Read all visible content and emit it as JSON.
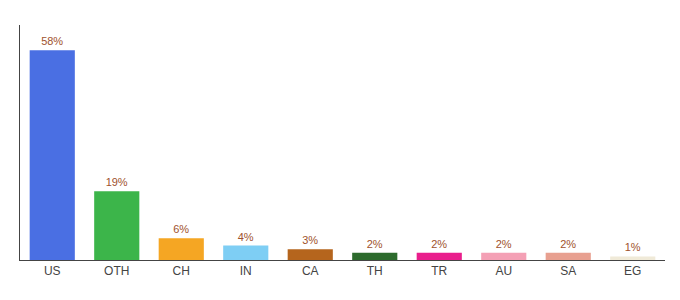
{
  "chart_data": {
    "type": "bar",
    "categories": [
      "US",
      "OTH",
      "CH",
      "IN",
      "CA",
      "TH",
      "TR",
      "AU",
      "SA",
      "EG"
    ],
    "values": [
      58,
      19,
      6,
      4,
      3,
      2,
      2,
      2,
      2,
      1
    ],
    "value_labels": [
      "58%",
      "19%",
      "6%",
      "4%",
      "3%",
      "2%",
      "2%",
      "2%",
      "2%",
      "1%"
    ],
    "colors": [
      "#4a6fe3",
      "#3cb54a",
      "#f5a623",
      "#7ecef4",
      "#b5651d",
      "#2d6b2d",
      "#e91e8c",
      "#f4a0b5",
      "#e8a090",
      "#f0ead8"
    ],
    "ylim": [
      0,
      65
    ],
    "data_labels": true,
    "tick_labels": "x",
    "grid": false
  }
}
